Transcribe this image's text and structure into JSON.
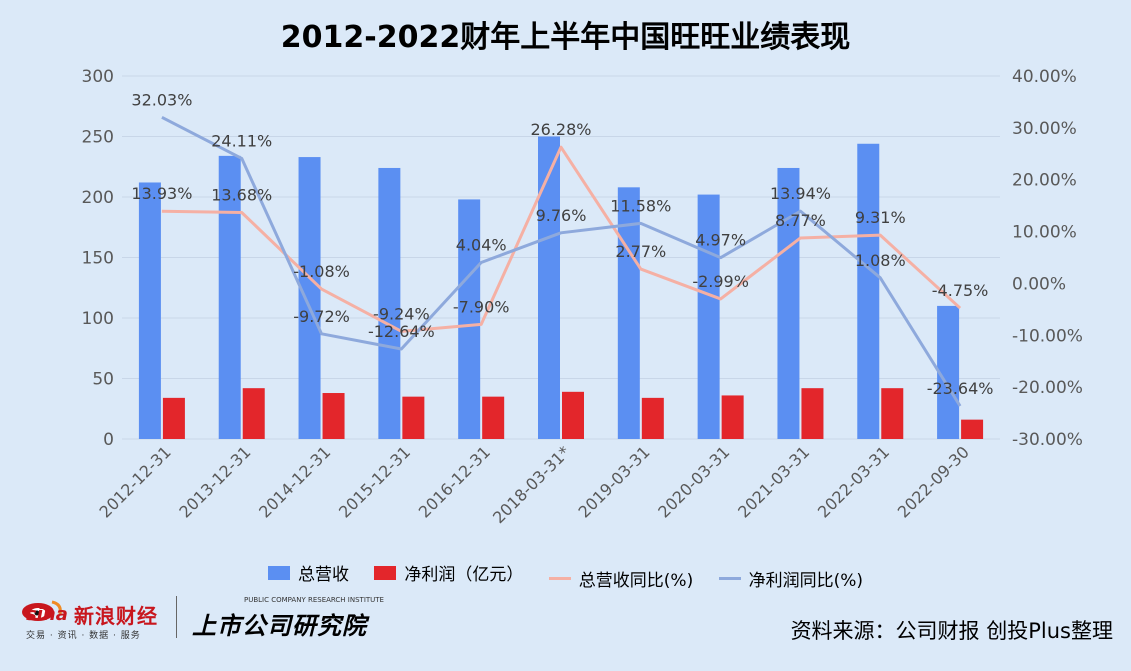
{
  "title": "2012-2022财年上半年中国旺旺业绩表现",
  "source_note": "资料来源：公司财报 创投Plus整理",
  "logos": {
    "sina_word": "sina",
    "sina_brand": "新浪财经",
    "sina_sub": "交易 · 资讯 · 数据 · 服务",
    "research_name": "上市公司研究院",
    "research_en": "PUBLIC COMPANY RESEARCH INSTITUTE"
  },
  "colors": {
    "background": "#dbe9f8",
    "revenue_bar": "#5b8ff2",
    "profit_bar": "#e3262b",
    "revenue_yoy_line": "#f5b0a4",
    "profit_yoy_line": "#8ea9dc",
    "grid": "#c8d6e8"
  },
  "chart_data": {
    "type": "bar",
    "categories": [
      "2012-12-31",
      "2013-12-31",
      "2014-12-31",
      "2015-12-31",
      "2016-12-31",
      "2018-03-31*",
      "2019-03-31",
      "2020-03-31",
      "2021-03-31",
      "2022-03-31",
      "2022-09-30"
    ],
    "y_ticks": [
      "300",
      "250",
      "200",
      "150",
      "100",
      "50",
      "0"
    ],
    "y2_ticks": [
      "40.00%",
      "30.00%",
      "20.00%",
      "10.00%",
      "0.00%",
      "-10.00%",
      "-20.00%",
      "-30.00%"
    ],
    "ylim": [
      0,
      300
    ],
    "y2lim": [
      -30,
      40
    ],
    "grid": true,
    "legend_position": "bottom",
    "series": [
      {
        "name": "总营收",
        "kind": "bar",
        "axis": "left",
        "values": [
          212,
          234,
          233,
          224,
          198,
          250,
          208,
          202,
          224,
          244,
          110
        ]
      },
      {
        "name": "净利润（亿元）",
        "kind": "bar",
        "axis": "left",
        "values": [
          34,
          42,
          38,
          35,
          35,
          39,
          34,
          36,
          42,
          42,
          16
        ]
      },
      {
        "name": "总营收同比(%)",
        "kind": "line",
        "axis": "right",
        "values": [
          13.93,
          13.68,
          -1.08,
          -9.24,
          -7.9,
          26.28,
          2.77,
          -2.99,
          8.77,
          9.31,
          -4.75
        ],
        "labels": [
          "13.93%",
          "13.68%",
          "-1.08%",
          "-9.24%",
          "-7.90%",
          "26.28%",
          "2.77%",
          "-2.99%",
          "8.77%",
          "9.31%",
          "-4.75%"
        ]
      },
      {
        "name": "净利润同比(%)",
        "kind": "line",
        "axis": "right",
        "values": [
          32.03,
          24.11,
          -9.72,
          -12.64,
          4.04,
          9.76,
          11.58,
          4.97,
          13.94,
          1.08,
          -23.64
        ],
        "labels": [
          "32.03%",
          "24.11%",
          "-9.72%",
          "-12.64%",
          "4.04%",
          "9.76%",
          "11.58%",
          "4.97%",
          "13.94%",
          "1.08%",
          "-23.64%"
        ]
      }
    ]
  }
}
